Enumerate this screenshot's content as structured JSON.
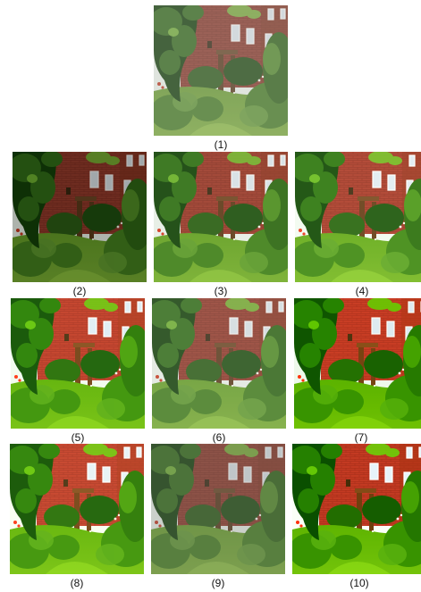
{
  "figures": [
    {
      "caption": "(1)",
      "tone": "hazy"
    },
    {
      "caption": "(2)",
      "tone": "dark"
    },
    {
      "caption": "(3)",
      "tone": "natural"
    },
    {
      "caption": "(4)",
      "tone": "natural-bright"
    },
    {
      "caption": "(5)",
      "tone": "vivid"
    },
    {
      "caption": "(6)",
      "tone": "light-haze"
    },
    {
      "caption": "(7)",
      "tone": "saturated"
    },
    {
      "caption": "(8)",
      "tone": "warm-vivid"
    },
    {
      "caption": "(9)",
      "tone": "hazy-dark"
    },
    {
      "caption": "(10)",
      "tone": "high-contrast"
    }
  ],
  "colors": {
    "brick": "#a34a3a",
    "foliage": "#3f7a25",
    "lawn": "#7fb33a",
    "sky": "#e8efe6"
  }
}
